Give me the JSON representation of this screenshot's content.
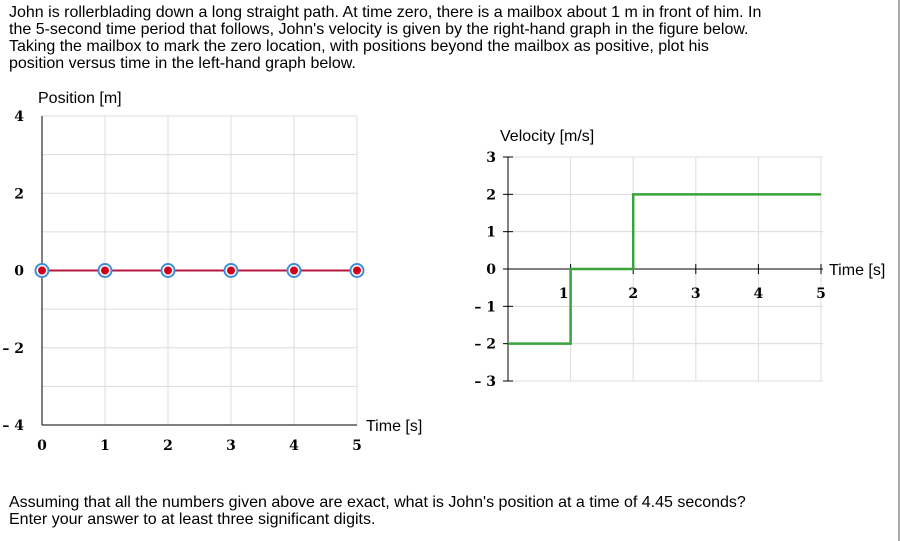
{
  "problem": {
    "lines": [
      "John is rollerblading down a long straight path. At time zero, there is a mailbox about 1 m in front of him. In",
      "the 5-second time period that follows, John's velocity is given by the right-hand graph in the figure below.",
      "Taking the mailbox to mark the zero location, with positions beyond the mailbox as positive, plot his",
      "position versus time in the left-hand graph below."
    ]
  },
  "question": {
    "lines": [
      "Assuming that all the numbers given above are exact, what is John's position at a time of 4.45 seconds?",
      "Enter your answer to at least three significant digits."
    ]
  },
  "colors": {
    "grid": "#dcdcdc",
    "axis": "#000000",
    "position_line": "#b5173e",
    "point_fill": "#d0021b",
    "point_ring": "#3f8fd8",
    "velocity_line": "#3aa33a"
  },
  "chart_data": [
    {
      "type": "line",
      "title": "",
      "ylabel": "Position [m]",
      "xlabel": "Time [s]",
      "xlim": [
        0,
        5
      ],
      "ylim": [
        -4,
        4
      ],
      "x_ticks": [
        "0",
        "1",
        "2",
        "3",
        "4",
        "5"
      ],
      "y_ticks": [
        "4",
        "2",
        "0",
        "– 2",
        "– 4"
      ],
      "y_tick_values": [
        4,
        2,
        0,
        -2,
        -4
      ],
      "grid": true,
      "series": [
        {
          "x": [
            0,
            1,
            2,
            3,
            4,
            5
          ],
          "y": [
            0,
            0,
            0,
            0,
            0,
            0
          ],
          "draggable_points": true
        }
      ]
    },
    {
      "type": "line",
      "title": "",
      "ylabel": "Velocity [m/s]",
      "xlabel": "Time [s]",
      "xlim": [
        0,
        5
      ],
      "ylim": [
        -3,
        3
      ],
      "x_ticks": [
        "1",
        "2",
        "3",
        "4",
        "5"
      ],
      "x_tick_values": [
        1,
        2,
        3,
        4,
        5
      ],
      "y_ticks": [
        "3",
        "2",
        "1",
        "0",
        "– 1",
        "– 2",
        "– 3"
      ],
      "y_tick_values": [
        3,
        2,
        1,
        0,
        -1,
        -2,
        -3
      ],
      "grid": true,
      "series": [
        {
          "x": [
            0,
            1,
            1,
            2,
            2,
            5
          ],
          "y": [
            -2,
            -2,
            0,
            0,
            2,
            2
          ]
        }
      ]
    }
  ]
}
